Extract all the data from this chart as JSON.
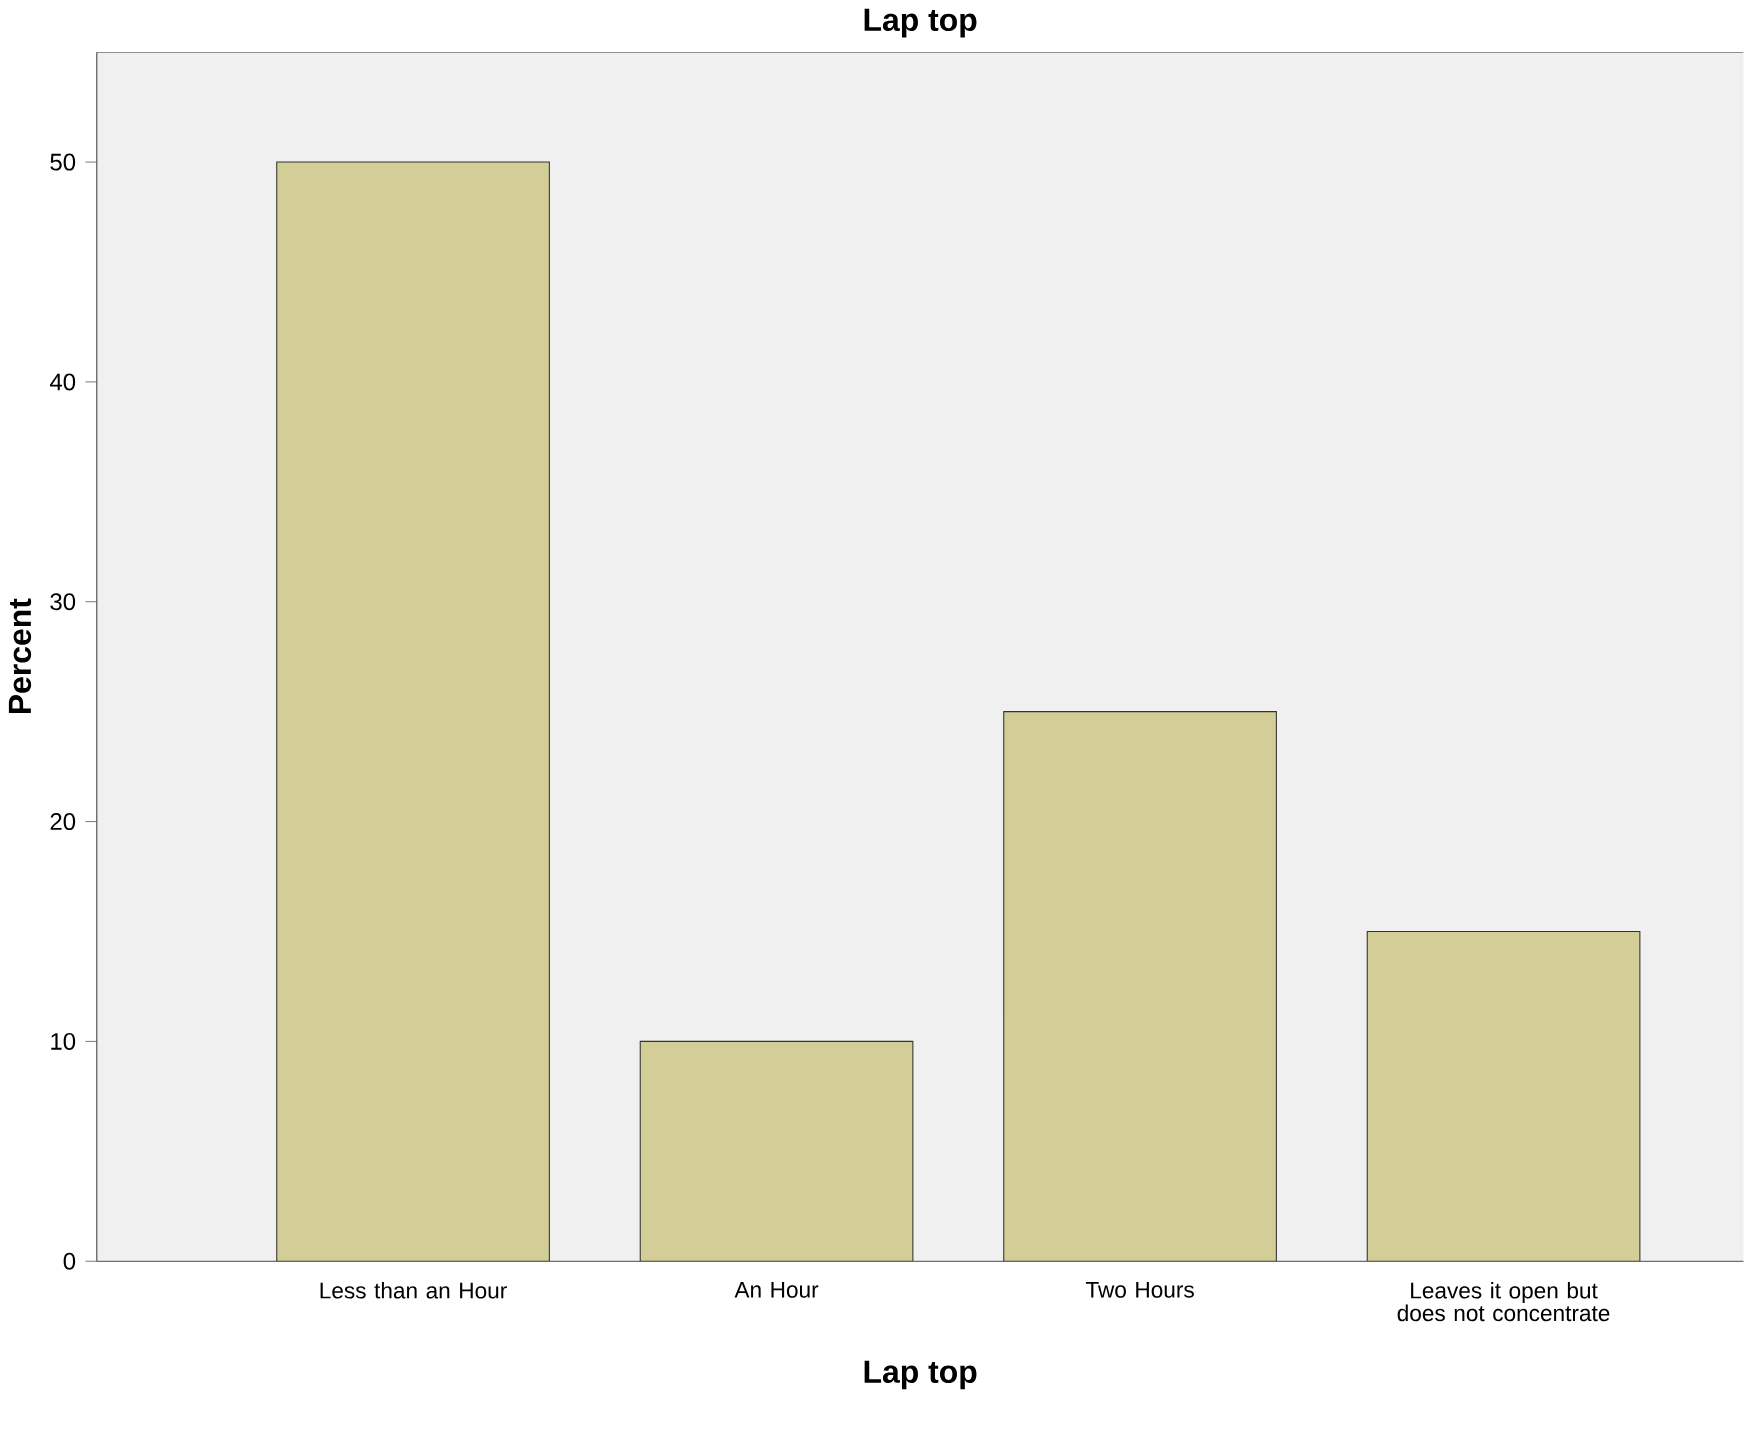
{
  "chart_data": {
    "type": "bar",
    "title": "Lap top",
    "xlabel": "Lap top",
    "ylabel": "Percent",
    "categories": [
      "Less than an Hour",
      "An Hour",
      "Two Hours",
      "Leaves it open but does not concentrate"
    ],
    "values": [
      50,
      10,
      25,
      15
    ],
    "color": "#d3ce97",
    "ylim": [
      0,
      55
    ],
    "yticks": [
      0,
      10,
      20,
      30,
      40,
      50
    ]
  }
}
